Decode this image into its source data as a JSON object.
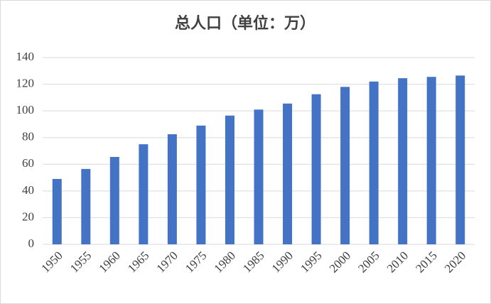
{
  "chart_data": {
    "type": "bar",
    "title": "总人口（单位：万）",
    "categories": [
      "1950",
      "1955",
      "1960",
      "1965",
      "1970",
      "1975",
      "1980",
      "1985",
      "1990",
      "1995",
      "2000",
      "2005",
      "2010",
      "2015",
      "2020"
    ],
    "values": [
      49,
      56.5,
      65.5,
      75,
      82.5,
      89,
      96.5,
      101,
      105.5,
      112.5,
      118,
      122,
      124.5,
      125.5,
      126.5
    ],
    "color": "#4472c4",
    "ylim": [
      0,
      140
    ],
    "yticks": [
      0,
      20,
      40,
      60,
      80,
      100,
      120,
      140
    ],
    "grid": true
  }
}
